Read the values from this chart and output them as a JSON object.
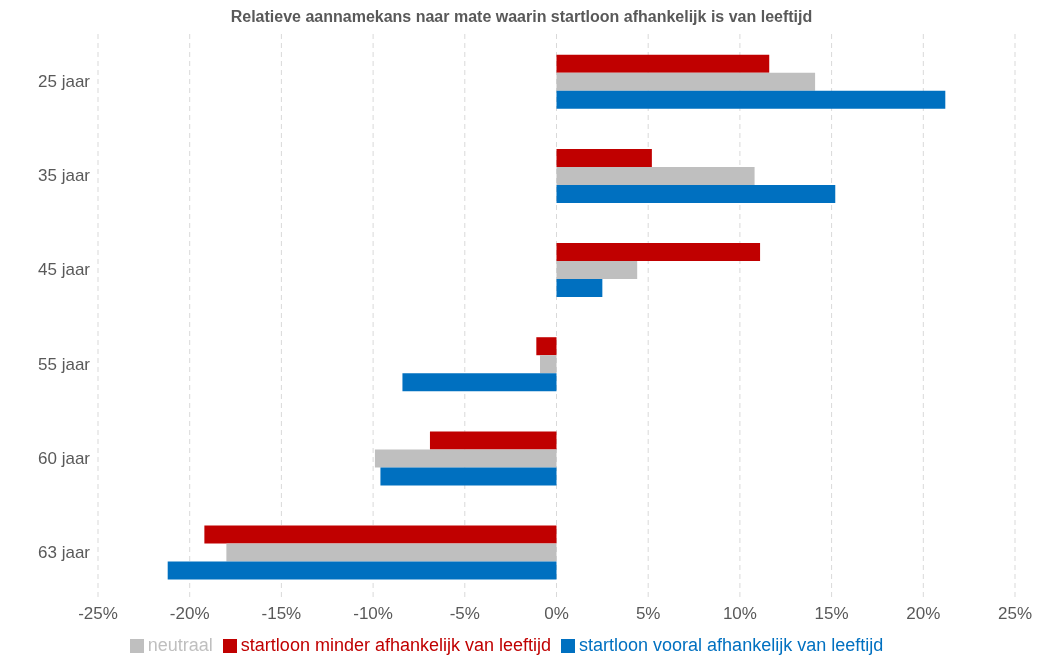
{
  "chart_data": {
    "type": "bar",
    "orientation": "horizontal",
    "title": "Relatieve aannamekans naar mate waarin startloon afhankelijk is van leeftijd",
    "categories": [
      "25 jaar",
      "35 jaar",
      "45 jaar",
      "55 jaar",
      "60 jaar",
      "63 jaar"
    ],
    "series": [
      {
        "name": "startloon minder afhankelijk van leeftijd",
        "color": "#c00000",
        "values": [
          11.6,
          5.2,
          11.1,
          -1.1,
          -6.9,
          -19.2
        ]
      },
      {
        "name": "neutraal",
        "color": "#bfbfbf",
        "values": [
          14.1,
          10.8,
          4.4,
          -0.9,
          -9.9,
          -18.0
        ]
      },
      {
        "name": "startloon vooral afhankelijk van leeftijd",
        "color": "#0070c0",
        "values": [
          21.2,
          15.2,
          2.5,
          -8.4,
          -9.6,
          -21.2
        ]
      }
    ],
    "xlim": [
      -25,
      25
    ],
    "xticks": [
      {
        "value": -25,
        "label": "-25%"
      },
      {
        "value": -20,
        "label": "-20%"
      },
      {
        "value": -15,
        "label": "-15%"
      },
      {
        "value": -10,
        "label": "-10%"
      },
      {
        "value": -5,
        "label": "-5%"
      },
      {
        "value": 0,
        "label": "0%"
      },
      {
        "value": 5,
        "label": "5%"
      },
      {
        "value": 10,
        "label": "10%"
      },
      {
        "value": 15,
        "label": "15%"
      },
      {
        "value": 20,
        "label": "20%"
      },
      {
        "value": 25,
        "label": "25%"
      }
    ],
    "grid": "x",
    "legend": "bottom"
  }
}
